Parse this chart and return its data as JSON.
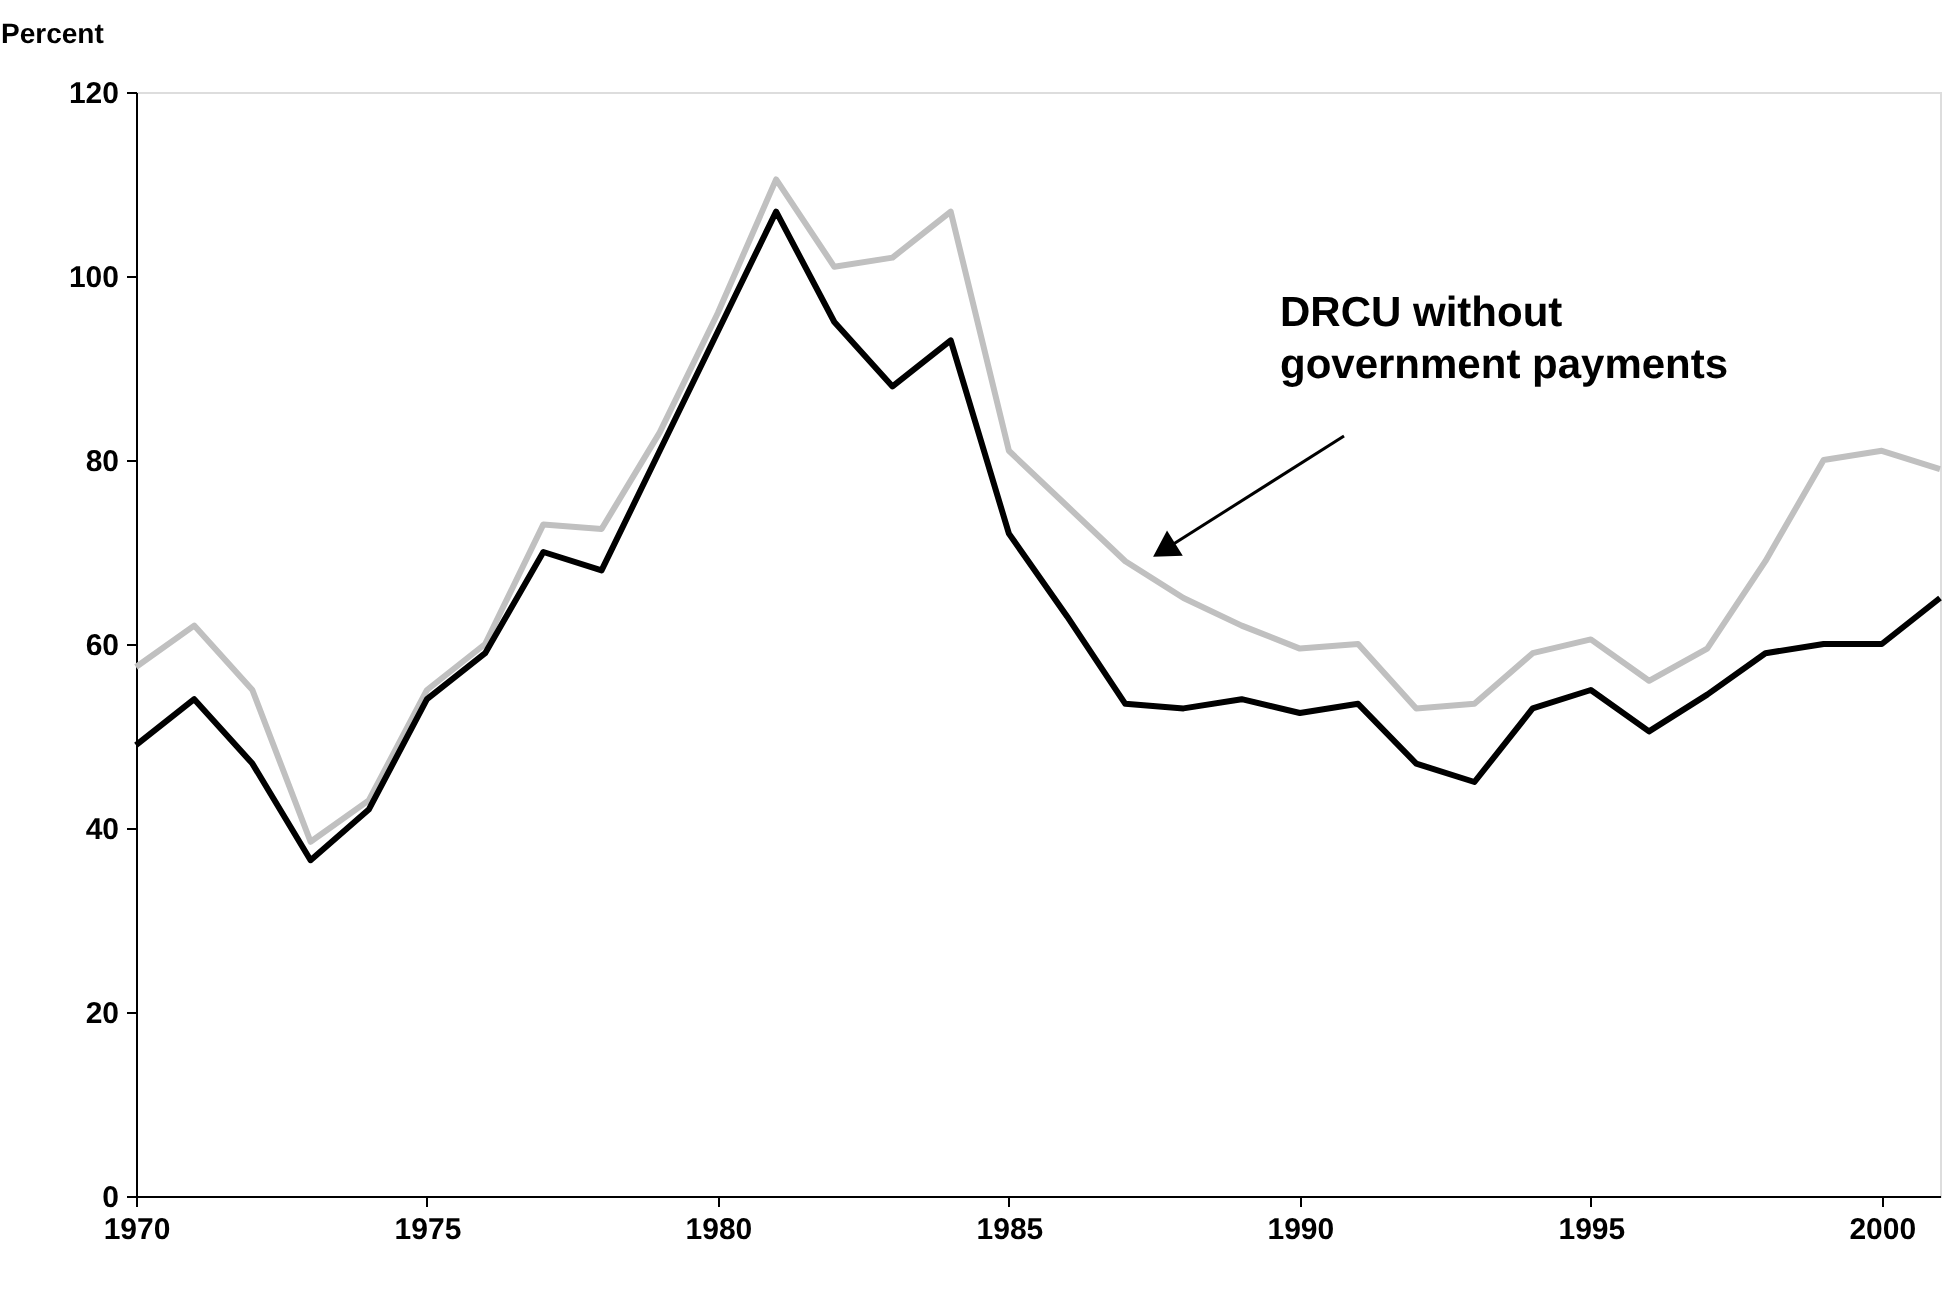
{
  "chart_data": {
    "type": "line",
    "ylabel": "Percent",
    "x": [
      1970,
      1971,
      1972,
      1973,
      1974,
      1975,
      1976,
      1977,
      1978,
      1979,
      1980,
      1981,
      1982,
      1983,
      1984,
      1985,
      1986,
      1987,
      1988,
      1989,
      1990,
      1991,
      1992,
      1993,
      1994,
      1995,
      1996,
      1997,
      1998,
      1999,
      2000,
      2001
    ],
    "series": [
      {
        "color": "#c0c0c0",
        "values": [
          57.5,
          62,
          55,
          38.5,
          43,
          55,
          60,
          73,
          72.5,
          83,
          96,
          110.5,
          101,
          102,
          107,
          81,
          75,
          69,
          65,
          62,
          59.5,
          60,
          53,
          53.5,
          59,
          60.5,
          56,
          59.5,
          69,
          80,
          81,
          79
        ]
      },
      {
        "color": "#000000",
        "values": [
          49,
          54,
          47,
          36.5,
          42,
          54,
          59,
          70,
          68,
          81,
          94,
          107,
          95,
          88,
          93,
          72,
          63,
          53.5,
          53,
          54,
          52.5,
          53.5,
          47,
          45,
          53,
          55,
          50.5,
          54.5,
          59,
          60,
          60,
          65
        ]
      }
    ],
    "xlim": [
      1970,
      2001
    ],
    "xticks": [
      1970,
      1975,
      1980,
      1985,
      1990,
      1995,
      2000
    ],
    "ylim": [
      0,
      120
    ],
    "yticks": [
      0,
      20,
      40,
      60,
      80,
      100,
      120
    ],
    "annotations": [
      "DRCU without\ngovernment payments"
    ],
    "grid": false,
    "marker": "none",
    "line_style": "solid"
  }
}
